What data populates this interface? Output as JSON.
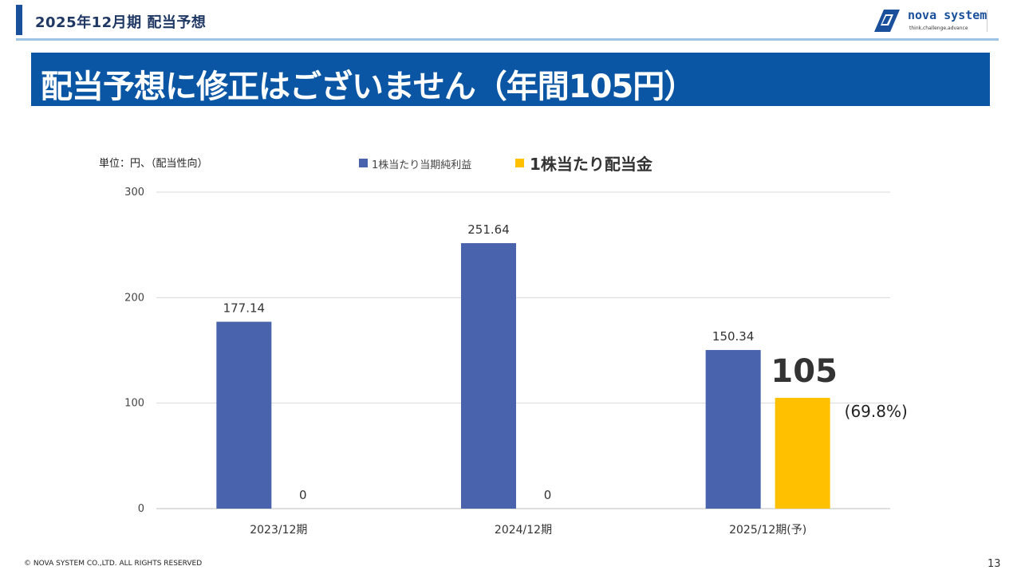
{
  "header": {
    "title": "2025年12月期  配当予想"
  },
  "logo": {
    "name": "nova system",
    "tagline": "think,challenge,advance"
  },
  "banner": {
    "text": "配当予想に修正はございません（年間105円）"
  },
  "unit_label": "単位：円、（配当性向）",
  "colors": {
    "eps": "#4a63ad",
    "dividend": "#ffc000",
    "banner": "#0b56a4"
  },
  "chart_data": {
    "type": "bar",
    "categories": [
      "2023/12期",
      "2024/12期",
      "2025/12期(予)"
    ],
    "series": [
      {
        "name": "1株当たり当期純利益",
        "values": [
          177.14,
          251.64,
          150.34
        ],
        "labels": [
          "177.14",
          "251.64",
          "150.34"
        ]
      },
      {
        "name": "1株当たり配当金",
        "values": [
          0,
          0,
          105
        ],
        "labels": [
          "0",
          "0",
          "105"
        ]
      }
    ],
    "annotations": [
      {
        "text": "(69.8%)"
      }
    ],
    "ylim": [
      0,
      300
    ],
    "yticks": [
      0,
      100,
      200,
      300
    ],
    "grid": true,
    "legend": "top"
  },
  "footer": {
    "copyright": "© NOVA SYSTEM CO.,LTD. ALL RIGHTS RESERVED",
    "page": "13"
  }
}
